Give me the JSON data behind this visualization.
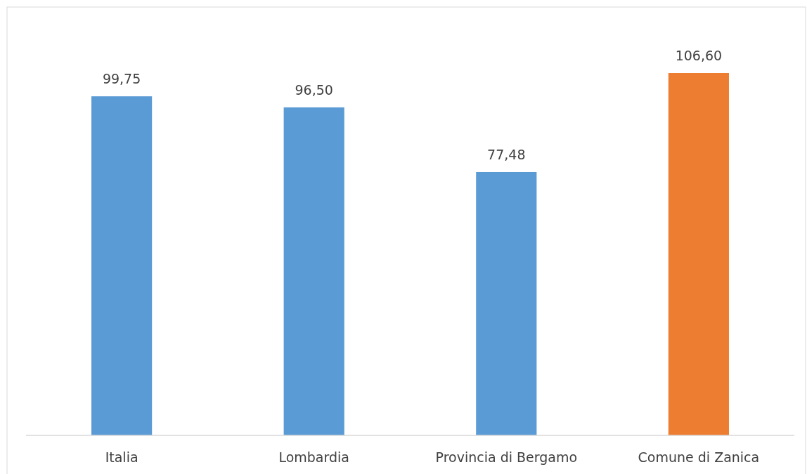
{
  "chart_data": {
    "type": "bar",
    "categories": [
      "Italia",
      "Lombardia",
      "Provincia di Bergamo",
      "Comune di Zanica"
    ],
    "values": [
      99.75,
      96.5,
      77.48,
      106.6
    ],
    "colors": [
      "#5b9bd5",
      "#5b9bd5",
      "#5b9bd5",
      "#ed7d31"
    ],
    "data_labels": true,
    "value_labels": [
      "99,75",
      "96,50",
      "77,48",
      "106,60"
    ]
  }
}
